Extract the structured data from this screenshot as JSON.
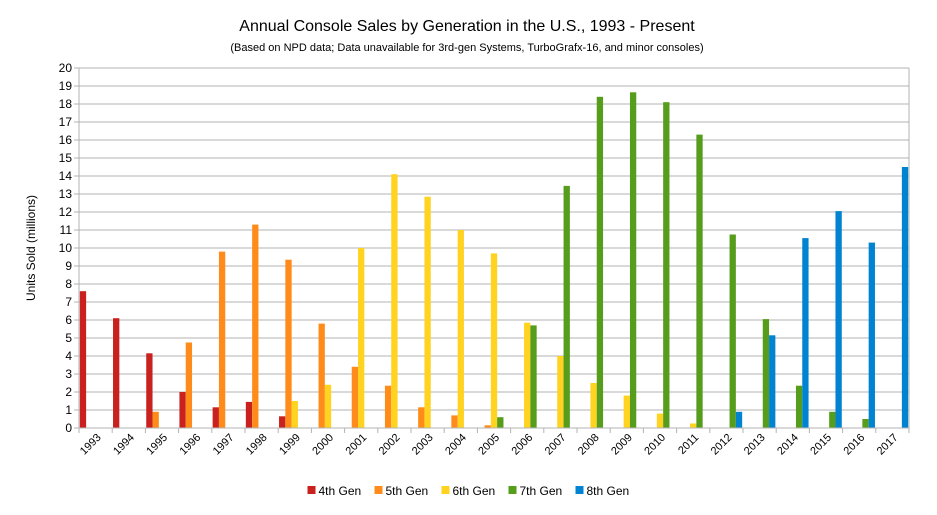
{
  "chart_data": {
    "type": "bar",
    "title": "Annual Console Sales by Generation in the U.S., 1993 - Present",
    "subtitle": "(Based on NPD data; Data unavailable for 3rd-gen Systems, TurboGrafx-16, and minor consoles)",
    "xlabel": "",
    "ylabel": "Units Sold (millions)",
    "ylim": [
      0,
      20
    ],
    "yticks": [
      0,
      1,
      2,
      3,
      4,
      5,
      6,
      7,
      8,
      9,
      10,
      11,
      12,
      13,
      14,
      15,
      16,
      17,
      18,
      19,
      20
    ],
    "grid": true,
    "legend_position": "bottom",
    "categories": [
      "1993",
      "1994",
      "1995",
      "1996",
      "1997",
      "1998",
      "1999",
      "2000",
      "2001",
      "2002",
      "2003",
      "2004",
      "2005",
      "2006",
      "2007",
      "2008",
      "2009",
      "2010",
      "2011",
      "2012",
      "2013",
      "2014",
      "2015",
      "2016",
      "2017"
    ],
    "series": [
      {
        "name": "4th Gen",
        "color": "#c9211e",
        "values": [
          7.6,
          6.1,
          4.15,
          2.0,
          1.15,
          1.45,
          0.65,
          null,
          null,
          null,
          null,
          null,
          null,
          null,
          null,
          null,
          null,
          null,
          null,
          null,
          null,
          null,
          null,
          null,
          null
        ]
      },
      {
        "name": "5th Gen",
        "color": "#ff8c1a",
        "values": [
          null,
          null,
          0.9,
          4.75,
          9.8,
          11.3,
          9.35,
          5.8,
          3.4,
          2.35,
          1.15,
          0.7,
          0.15,
          null,
          null,
          null,
          null,
          null,
          null,
          null,
          null,
          null,
          null,
          null,
          null
        ]
      },
      {
        "name": "6th Gen",
        "color": "#ffd320",
        "values": [
          null,
          null,
          null,
          null,
          null,
          null,
          1.5,
          2.4,
          10.0,
          14.1,
          12.85,
          11.0,
          9.7,
          5.85,
          4.0,
          2.5,
          1.8,
          0.8,
          0.25,
          null,
          null,
          null,
          null,
          null,
          null
        ]
      },
      {
        "name": "7th Gen",
        "color": "#579d1c",
        "values": [
          null,
          null,
          null,
          null,
          null,
          null,
          null,
          null,
          null,
          null,
          null,
          null,
          0.6,
          5.7,
          13.45,
          18.4,
          18.65,
          18.1,
          16.3,
          10.75,
          6.05,
          2.35,
          0.9,
          0.5,
          null
        ]
      },
      {
        "name": "8th Gen",
        "color": "#0084d1",
        "values": [
          null,
          null,
          null,
          null,
          null,
          null,
          null,
          null,
          null,
          null,
          null,
          null,
          null,
          null,
          null,
          null,
          null,
          null,
          null,
          0.9,
          5.15,
          10.55,
          12.05,
          10.3,
          14.5
        ]
      }
    ]
  }
}
